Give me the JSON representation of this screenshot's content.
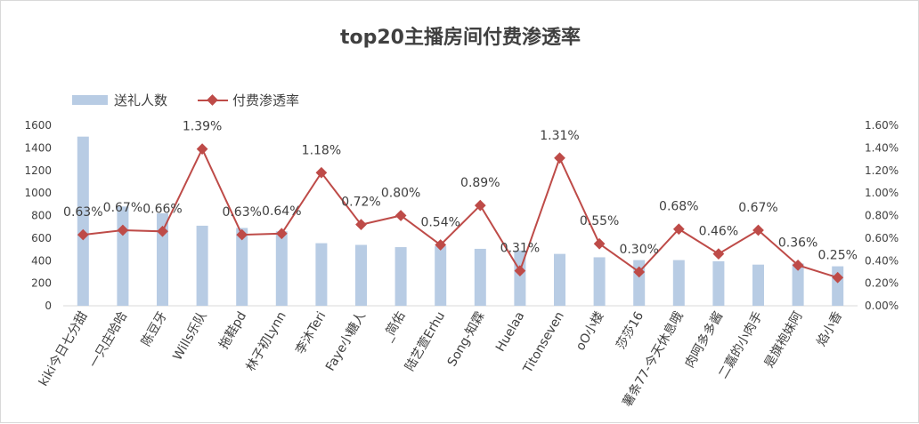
{
  "chart_data": {
    "type": "bar+line",
    "title": "top20主播房间付费渗透率",
    "categories": [
      "kiki今日七分甜",
      "一只庄哈哈",
      "陈豆牙",
      "Wills乐队",
      "拖鞋pd",
      "林子初Lynn",
      "李沐Teri",
      "Faye小糖人",
      "_简佑",
      "陆艺萱Erhu",
      "Song-知霖",
      "Huelaa",
      "Titonseven",
      "oO小楼",
      "莎莎16",
      "薯条77-今天休息哦",
      "肉呵多多酱",
      "二嘉的小肉手",
      "是旗袍妹阿",
      "焰小香"
    ],
    "series": [
      {
        "name": "送礼人数",
        "type": "bar",
        "axis": "left",
        "color": "#b8cce4",
        "values": [
          1500,
          880,
          820,
          710,
          690,
          660,
          555,
          540,
          520,
          530,
          505,
          490,
          460,
          430,
          405,
          405,
          395,
          365,
          375,
          350
        ]
      },
      {
        "name": "付费渗透率",
        "type": "line",
        "axis": "right",
        "color": "#be4b48",
        "values": [
          0.0063,
          0.0067,
          0.0066,
          0.0139,
          0.0063,
          0.0064,
          0.0118,
          0.0072,
          0.008,
          0.0054,
          0.0089,
          0.0031,
          0.0131,
          0.0055,
          0.003,
          0.0068,
          0.0046,
          0.0067,
          0.0036,
          0.0025
        ],
        "labels": [
          "0.63%",
          "0.67%",
          "0.66%",
          "1.39%",
          "0.63%",
          "0.64%",
          "1.18%",
          "0.72%",
          "0.80%",
          "0.54%",
          "0.89%",
          "0.31%",
          "1.31%",
          "0.55%",
          "0.30%",
          "0.68%",
          "0.46%",
          "0.67%",
          "0.36%",
          "0.25%"
        ]
      }
    ],
    "y_left": {
      "ylim": [
        0,
        1600
      ],
      "ticks": [
        "0",
        "200",
        "400",
        "600",
        "800",
        "1000",
        "1200",
        "1400",
        "1600"
      ]
    },
    "y_right": {
      "ylim": [
        0,
        0.016
      ],
      "ticks": [
        "0.00%",
        "0.20%",
        "0.40%",
        "0.60%",
        "0.80%",
        "1.00%",
        "1.20%",
        "1.40%",
        "1.60%"
      ]
    },
    "legend": {
      "position": "top-left",
      "items": [
        "送礼人数",
        "付费渗透率"
      ]
    },
    "grid": false
  }
}
